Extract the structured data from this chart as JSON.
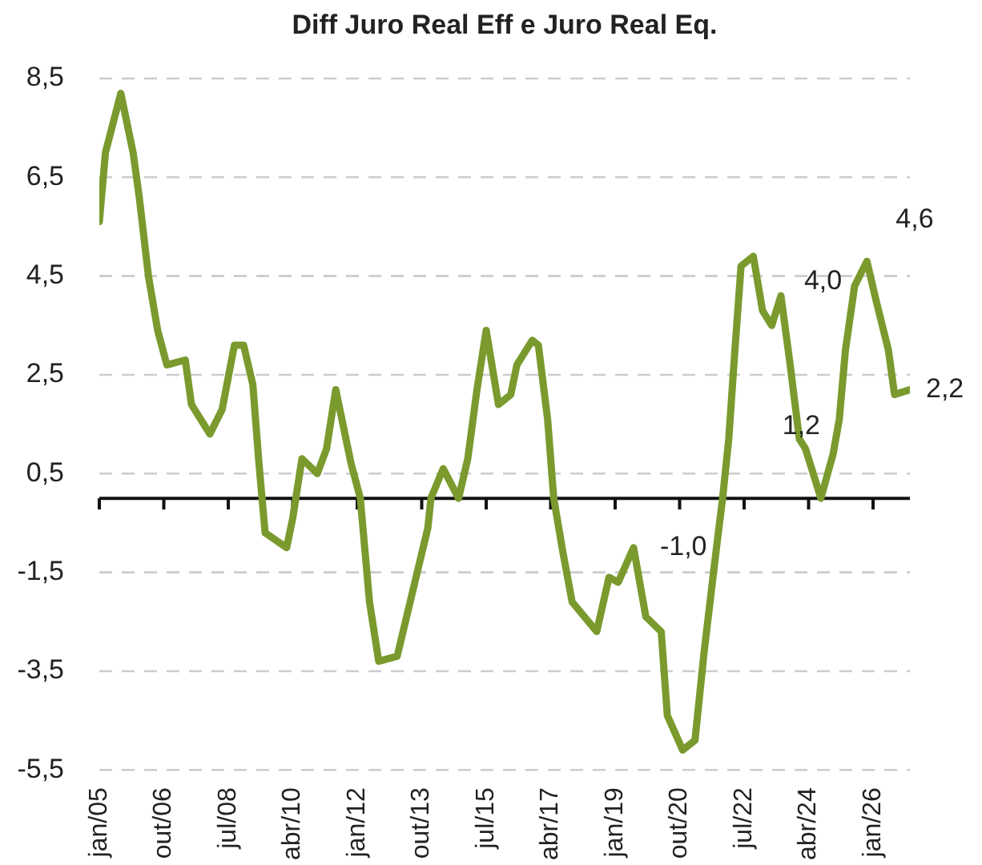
{
  "chart_data": {
    "type": "line",
    "title": "Diff Juro Real Eff e Juro Real Eq.",
    "x": [
      "2005-01",
      "2005-03",
      "2005-08",
      "2005-12",
      "2006-02",
      "2006-05",
      "2006-08",
      "2006-11",
      "2007-05",
      "2007-07",
      "2008-01",
      "2008-05",
      "2008-09",
      "2008-12",
      "2009-03",
      "2009-05",
      "2009-07",
      "2010-02",
      "2010-04",
      "2010-07",
      "2010-12",
      "2011-03",
      "2011-06",
      "2011-11",
      "2012-02",
      "2012-05",
      "2012-08",
      "2013-02",
      "2013-07",
      "2013-12",
      "2014-01",
      "2014-05",
      "2014-10",
      "2015-01",
      "2015-04",
      "2015-07",
      "2015-11",
      "2016-03",
      "2016-05",
      "2016-10",
      "2016-12",
      "2017-03",
      "2017-05",
      "2017-08",
      "2017-11",
      "2018-07",
      "2018-11",
      "2019-02",
      "2019-07",
      "2019-11",
      "2020-04",
      "2020-06",
      "2020-11",
      "2021-03",
      "2021-06",
      "2021-10",
      "2021-12",
      "2022-02",
      "2022-04",
      "2022-06",
      "2022-10",
      "2023-01",
      "2023-04",
      "2023-07",
      "2023-10",
      "2024-01",
      "2024-03",
      "2024-08",
      "2024-12",
      "2025-02",
      "2025-04",
      "2025-07",
      "2025-11",
      "2026-02",
      "2026-06",
      "2026-08",
      "2027-01"
    ],
    "series": [
      {
        "color": "#7a9a2e",
        "values": [
          5.6,
          7.0,
          8.2,
          7.0,
          6.1,
          4.5,
          3.4,
          2.7,
          2.8,
          1.9,
          1.3,
          1.8,
          3.1,
          3.1,
          2.3,
          0.7,
          -0.7,
          -1.0,
          -0.4,
          0.8,
          0.5,
          1.0,
          2.2,
          0.7,
          0.0,
          -2.1,
          -3.3,
          -3.2,
          -1.9,
          -0.6,
          0.0,
          0.6,
          0.0,
          0.8,
          2.2,
          3.4,
          1.9,
          2.1,
          2.7,
          3.2,
          3.1,
          1.6,
          0.0,
          -1.1,
          -2.1,
          -2.7,
          -1.6,
          -1.7,
          -1.0,
          -2.4,
          -2.7,
          -4.4,
          -5.1,
          -4.9,
          -3.1,
          -1.0,
          0.0,
          1.2,
          3.0,
          4.7,
          4.9,
          3.8,
          3.5,
          4.1,
          2.7,
          1.2,
          1.0,
          0.0,
          0.9,
          1.6,
          3.0,
          4.3,
          4.8,
          4.0,
          3.0,
          2.1,
          2.2
        ]
      }
    ],
    "xlim": [
      "2005-01",
      "2027-01"
    ],
    "xticks": [
      {
        "value": "2005-01",
        "label": "jan/05"
      },
      {
        "value": "2006-10",
        "label": "out/06"
      },
      {
        "value": "2008-07",
        "label": "jul/08"
      },
      {
        "value": "2010-04",
        "label": "abr/10"
      },
      {
        "value": "2012-01",
        "label": "jan/12"
      },
      {
        "value": "2013-10",
        "label": "out/13"
      },
      {
        "value": "2015-07",
        "label": "jul/15"
      },
      {
        "value": "2017-04",
        "label": "abr/17"
      },
      {
        "value": "2019-01",
        "label": "jan/19"
      },
      {
        "value": "2020-10",
        "label": "out/20"
      },
      {
        "value": "2022-07",
        "label": "jul/22"
      },
      {
        "value": "2024-04",
        "label": "abr/24"
      },
      {
        "value": "2026-01",
        "label": "jan/26"
      }
    ],
    "ylim": [
      -5.5,
      8.5
    ],
    "yticks": [
      {
        "value": -5.5,
        "label": "-5,5"
      },
      {
        "value": -3.5,
        "label": "-3,5"
      },
      {
        "value": -1.5,
        "label": "-1,5"
      },
      {
        "value": 0.5,
        "label": "0,5"
      },
      {
        "value": 2.5,
        "label": "2,5"
      },
      {
        "value": 4.5,
        "label": "4,5"
      },
      {
        "value": 6.5,
        "label": "6,5"
      },
      {
        "value": 8.5,
        "label": "8,5"
      }
    ],
    "grid": "y",
    "legend": false,
    "marker": "none",
    "line_style": "solid",
    "annotations": [
      {
        "text": "-1,0",
        "x": "2021-10",
        "y": -1.0
      },
      {
        "text": "1,2",
        "x": "2025-01",
        "y": 1.2
      },
      {
        "text": "4,0",
        "x": "2025-06",
        "y": 4.0
      },
      {
        "text": "4,6",
        "x": "2025-11",
        "y": 4.6
      },
      {
        "text": "2,2",
        "x": "2027-01",
        "y": 2.2
      }
    ]
  }
}
